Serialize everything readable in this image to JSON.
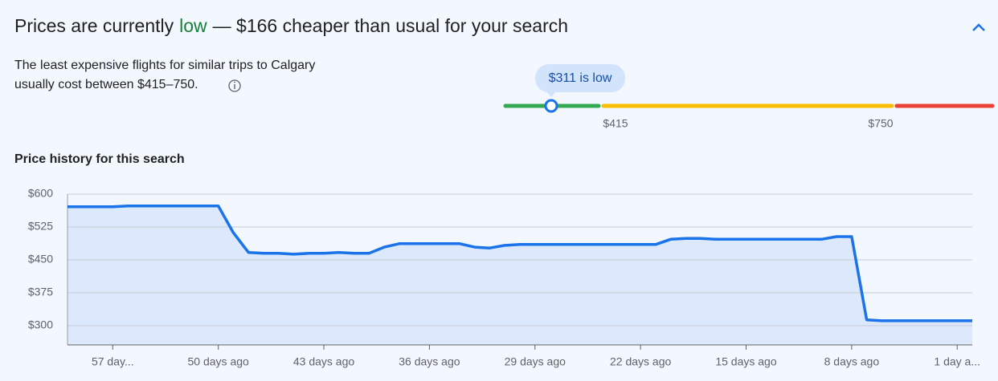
{
  "header": {
    "prefix": "Prices are currently",
    "status": "low",
    "suffix": "— $166 cheaper than usual for your search"
  },
  "description": [
    "The least expensive flights for similar trips to Calgary",
    "usually cost between $415–750."
  ],
  "gauge": {
    "badge": "$311 is low",
    "low_label": "$415",
    "high_label": "$750"
  },
  "chart_data": {
    "type": "line",
    "title": "Price history for this search",
    "x": [
      60,
      59,
      58,
      57,
      56,
      55,
      54,
      53,
      52,
      51,
      50,
      49,
      48,
      47,
      46,
      45,
      44,
      43,
      42,
      41,
      40,
      39,
      38,
      37,
      36,
      35,
      34,
      33,
      32,
      31,
      30,
      29,
      28,
      27,
      26,
      25,
      24,
      23,
      22,
      21,
      20,
      19,
      18,
      17,
      16,
      15,
      14,
      13,
      12,
      11,
      10,
      9,
      8,
      7,
      6,
      5,
      4,
      3,
      2,
      1,
      0
    ],
    "values": [
      571,
      571,
      571,
      571,
      573,
      573,
      573,
      573,
      573,
      573,
      573,
      512,
      467,
      465,
      465,
      463,
      465,
      465,
      467,
      465,
      465,
      479,
      487,
      487,
      487,
      487,
      487,
      479,
      477,
      483,
      485,
      485,
      485,
      485,
      485,
      485,
      485,
      485,
      485,
      485,
      497,
      499,
      499,
      497,
      497,
      497,
      497,
      497,
      497,
      497,
      497,
      503,
      503,
      313,
      311,
      311,
      311,
      311,
      311,
      311,
      311
    ],
    "color": "#1a73e8",
    "xlim": [
      60,
      0
    ],
    "xticks": [
      {
        "value": 57,
        "label": "57 day..."
      },
      {
        "value": 50,
        "label": "50 days ago"
      },
      {
        "value": 43,
        "label": "43 days ago"
      },
      {
        "value": 36,
        "label": "36 days ago"
      },
      {
        "value": 29,
        "label": "29 days ago"
      },
      {
        "value": 22,
        "label": "22 days ago"
      },
      {
        "value": 15,
        "label": "15 days ago"
      },
      {
        "value": 8,
        "label": "8 days ago"
      },
      {
        "value": 1,
        "label": "1 day a..."
      }
    ],
    "ylim": [
      256,
      600
    ],
    "yticks": [
      {
        "value": 300,
        "label": "$300"
      },
      {
        "value": 375,
        "label": "$375"
      },
      {
        "value": 450,
        "label": "$450"
      },
      {
        "value": 525,
        "label": "$525"
      },
      {
        "value": 600,
        "label": "$600"
      }
    ],
    "grid": true
  }
}
